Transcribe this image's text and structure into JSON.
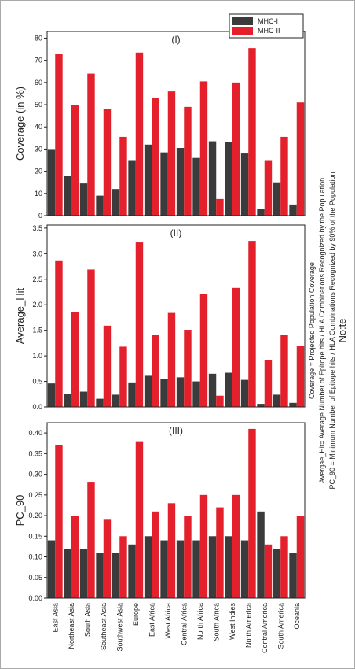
{
  "chart_data": [
    {
      "type": "bar",
      "title": "(I)",
      "y_label": "Coverage (in %)",
      "legend": "top-right",
      "series": [
        {
          "name": "MHC-I",
          "color": "#3b3b3b",
          "values": [
            30,
            18,
            14.5,
            9,
            12,
            25,
            32,
            28.5,
            30.5,
            26,
            33.5,
            33,
            28,
            3,
            15,
            5
          ]
        },
        {
          "name": "MHC-II",
          "color": "#e3202b",
          "values": [
            73,
            50,
            64,
            48,
            35.5,
            73.5,
            53,
            56,
            49,
            60.5,
            7.5,
            60,
            75.5,
            25,
            35.5,
            51
          ]
        }
      ],
      "ylim": [
        0,
        83
      ],
      "yticks": [
        0,
        10,
        20,
        30,
        40,
        50,
        60,
        70,
        80
      ]
    },
    {
      "type": "bar",
      "title": "(II)",
      "y_label": "Average_Hit",
      "series": [
        {
          "color": "#3b3b3b",
          "values": [
            0.46,
            0.25,
            0.3,
            0.16,
            0.24,
            0.48,
            0.61,
            0.55,
            0.58,
            0.5,
            0.65,
            0.67,
            0.53,
            0.06,
            0.24,
            0.08
          ]
        },
        {
          "color": "#e3202b",
          "values": [
            2.87,
            1.86,
            2.69,
            1.59,
            1.18,
            3.22,
            1.41,
            1.84,
            1.51,
            2.21,
            0.22,
            2.33,
            3.25,
            0.91,
            1.41,
            1.2
          ]
        }
      ],
      "ylim": [
        0,
        3.56
      ],
      "yticks": [
        {
          "value": 0,
          "label": "0.0"
        },
        0.5,
        {
          "value": 1,
          "label": "1.0"
        },
        1.5,
        {
          "value": 2,
          "label": "2.0"
        },
        2.5,
        {
          "value": 3,
          "label": "3.0"
        },
        3.5
      ]
    },
    {
      "type": "bar",
      "title": "(III)",
      "y_label": "PC_90",
      "categories": [
        "East Asia",
        "Northeast Asia",
        "South Asia",
        "Southeast Asia",
        "Southwest Asia",
        "Europe",
        "East Africa",
        "West Africa",
        "Central Africa",
        "North Africa",
        "South Africa",
        "West Indies",
        "North America",
        "Central America",
        "South America",
        "Oceania"
      ],
      "series": [
        {
          "color": "#3b3b3b",
          "values": [
            0.14,
            0.12,
            0.12,
            0.11,
            0.11,
            0.13,
            0.15,
            0.14,
            0.14,
            0.14,
            0.15,
            0.15,
            0.14,
            0.21,
            0.12,
            0.11
          ]
        },
        {
          "color": "#e3202b",
          "values": [
            0.37,
            0.2,
            0.28,
            0.19,
            0.15,
            0.38,
            0.21,
            0.23,
            0.2,
            0.25,
            0.22,
            0.25,
            0.41,
            0.13,
            0.15,
            0.2
          ]
        }
      ],
      "ylim": [
        0,
        0.425
      ],
      "yticks": [
        {
          "value": 0,
          "label": "0.00"
        },
        0.05,
        {
          "value": 0.1,
          "label": "0.10"
        },
        0.15,
        {
          "value": 0.2,
          "label": "0.20"
        },
        0.25,
        {
          "value": 0.3,
          "label": "0.30"
        },
        0.35,
        {
          "value": 0.4,
          "label": "0.40"
        }
      ]
    }
  ],
  "note": {
    "title": "No:te",
    "lines": [
      "Coverage = Projected Population Coverage",
      "Avergae_Hit= Average Number of Epitope hits / HLA Combinations Recognized by the Population",
      "PC_90 = Minimum Number of Epitope hits / HLA Combinations Recognized by 90% of the Population"
    ]
  }
}
